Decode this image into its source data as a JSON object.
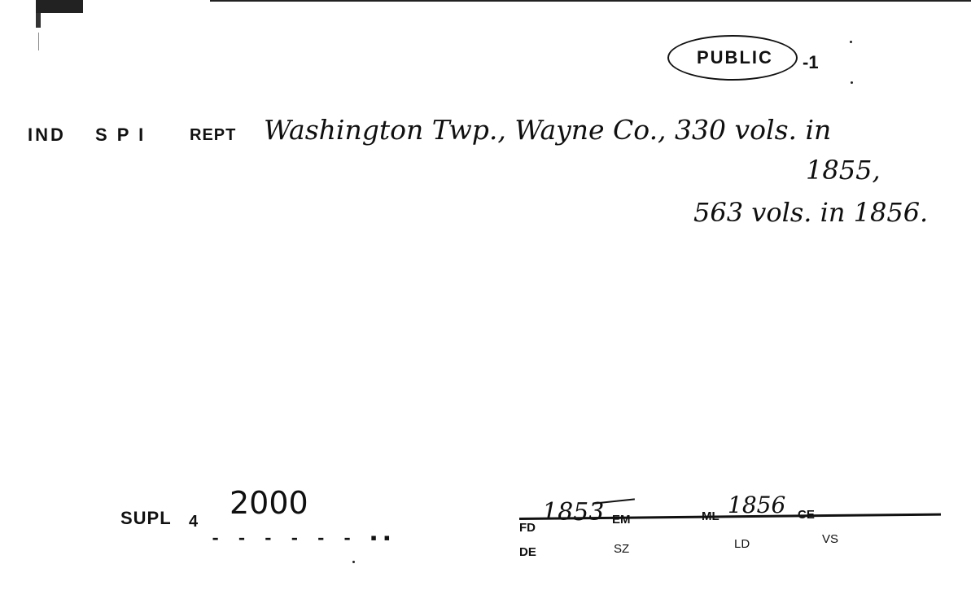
{
  "stamp": {
    "label": "PUBLIC",
    "mark": "-1"
  },
  "header": {
    "col1": "IND",
    "col2": "S P I",
    "col3": "REPT"
  },
  "entry": {
    "line1": "Washington Twp., Wayne Co., 330 vols. in",
    "line2": "1855,",
    "line3": "563 vols. in 1856."
  },
  "supplement": {
    "label": "SUPL",
    "number": "4",
    "value": "2000",
    "dashes": "- - - - - - ▪▪"
  },
  "footer": {
    "fd_label": "FD",
    "fd_value": "1853",
    "em_label": "EM",
    "ml_label": "ML",
    "ml_value": "1856",
    "ce_label": "CE",
    "de_label": "DE",
    "sz_label": "SZ",
    "ld_label": "LD",
    "vs_label": "VS"
  }
}
